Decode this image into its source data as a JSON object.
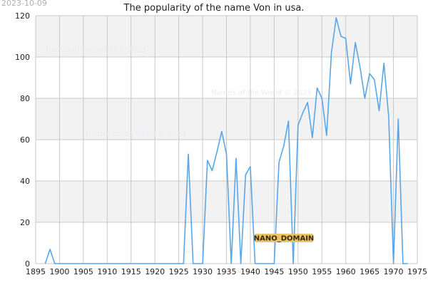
{
  "date_stamp": "2023-10-09",
  "watermarks": [
    "Names of the World © 2023",
    "Names of the World © 2023",
    "Names of the World © 2023"
  ],
  "badge": "NANO_DOMAIN",
  "colors": {
    "line": "#5aa6e8",
    "band": "#f2f2f2",
    "grid": "#c8c8c8",
    "badge_bg": "#e8c46a"
  },
  "chart_data": {
    "type": "line",
    "title": "The popularity of the name Von in usa.",
    "xlabel": "",
    "ylabel": "",
    "xlim": [
      1895,
      1975
    ],
    "ylim": [
      0,
      120
    ],
    "x_ticks": [
      1895,
      1900,
      1905,
      1910,
      1915,
      1920,
      1925,
      1930,
      1935,
      1940,
      1945,
      1950,
      1955,
      1960,
      1965,
      1970,
      1975
    ],
    "y_ticks": [
      0,
      20,
      40,
      60,
      80,
      100,
      120
    ],
    "grid": true,
    "series": [
      {
        "x": [
          1897,
          1898,
          1899,
          1900,
          1901,
          1902,
          1903,
          1904,
          1905,
          1906,
          1907,
          1908,
          1909,
          1910,
          1911,
          1912,
          1913,
          1914,
          1915,
          1916,
          1917,
          1918,
          1919,
          1920,
          1921,
          1922,
          1923,
          1924,
          1925,
          1926,
          1927,
          1928,
          1929,
          1930,
          1931,
          1932,
          1933,
          1934,
          1935,
          1936,
          1937,
          1938,
          1939,
          1940,
          1941,
          1942,
          1943,
          1944,
          1945,
          1946,
          1947,
          1948,
          1949,
          1950,
          1951,
          1952,
          1953,
          1954,
          1955,
          1956,
          1957,
          1958,
          1959,
          1960,
          1961,
          1962,
          1963,
          1964,
          1965,
          1966,
          1967,
          1968,
          1969,
          1970,
          1971,
          1972,
          1973
        ],
        "values": [
          0,
          7,
          0,
          0,
          0,
          0,
          0,
          0,
          0,
          0,
          0,
          0,
          0,
          0,
          0,
          0,
          0,
          0,
          0,
          0,
          0,
          0,
          0,
          0,
          0,
          0,
          0,
          0,
          0,
          0,
          53,
          0,
          0,
          0,
          50,
          45,
          54,
          64,
          53,
          0,
          51,
          0,
          43,
          47,
          0,
          0,
          0,
          0,
          0,
          49,
          57,
          69,
          0,
          67,
          73,
          78,
          61,
          85,
          80,
          62,
          102,
          119,
          110,
          109,
          87,
          107,
          95,
          80,
          92,
          89,
          74,
          97,
          71,
          0,
          70,
          0,
          0
        ]
      }
    ]
  }
}
